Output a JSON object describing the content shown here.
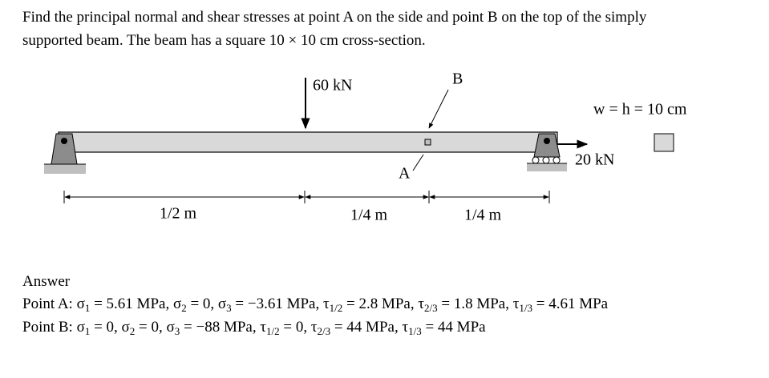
{
  "problem": {
    "line1": "Find the principal normal and shear stresses at point A on the side and point B on the top of the simply",
    "line2": "supported beam. The beam has a square 10 × 10 cm cross-section."
  },
  "figure": {
    "load_left": "60 kN",
    "label_b": "B",
    "label_a": "A",
    "section": "w = h = 10 cm",
    "load_right": "20 kN",
    "dims": [
      "1/2 m",
      "1/4 m",
      "1/4 m"
    ]
  },
  "answer": {
    "heading": "Answer",
    "point_a": [
      "Point A: σ",
      "1",
      " = 5.61 MPa, σ",
      "2",
      " = 0, σ",
      "3",
      " = −3.61 MPa, τ",
      "1/2",
      " = 2.8 MPa, τ",
      "2/3",
      " = 1.8 MPa, τ",
      "1/3",
      " = 4.61 MPa"
    ],
    "point_b": [
      "Point B: σ",
      "1",
      " = 0, σ",
      "2",
      " = 0, σ",
      "3",
      " = −88 MPa, τ",
      "1/2",
      " = 0, τ",
      "2/3",
      " = 44 MPa, τ",
      "1/3",
      " = 44 MPa"
    ]
  }
}
